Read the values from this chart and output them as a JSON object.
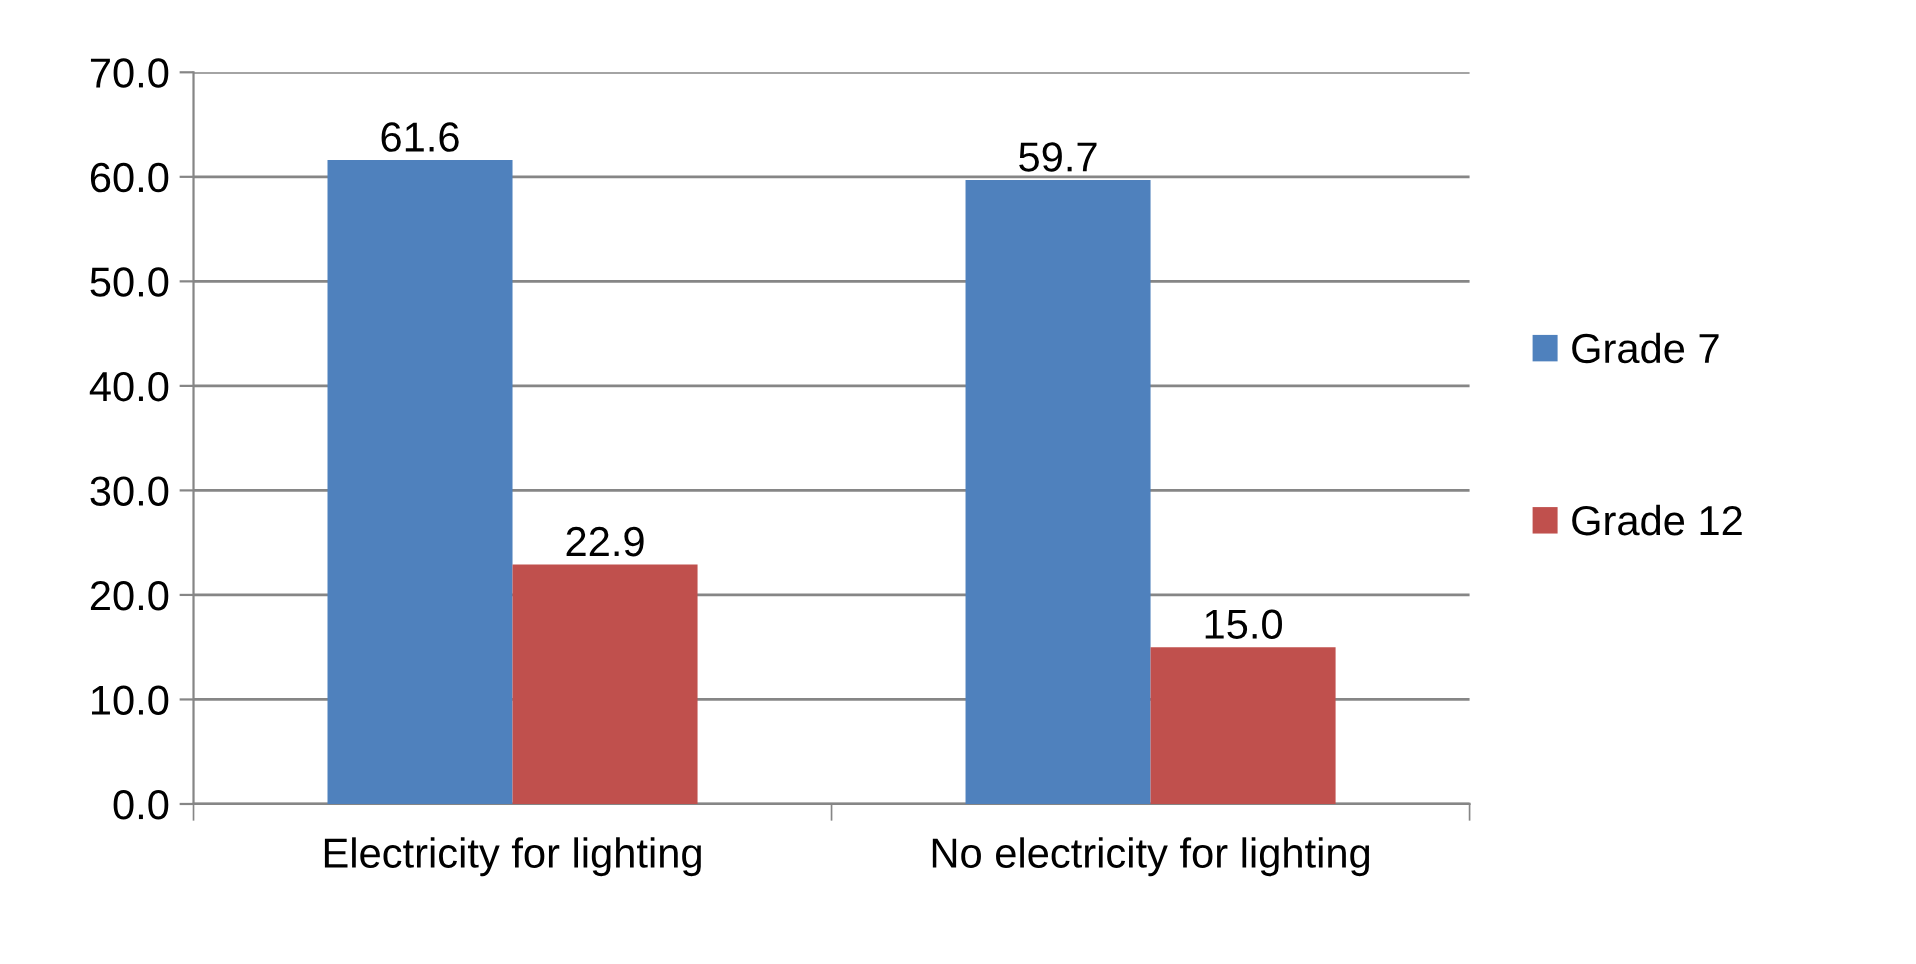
{
  "chart_data": {
    "type": "bar",
    "categories": [
      "Electricity for lighting",
      "No electricity for lighting"
    ],
    "series": [
      {
        "name": "Grade 7",
        "color": "#4f81bd",
        "values": [
          61.6,
          59.7
        ],
        "value_labels": [
          "61.6",
          "59.7"
        ]
      },
      {
        "name": "Grade 12",
        "color": "#c0504d",
        "values": [
          22.9,
          15.0
        ],
        "value_labels": [
          "22.9",
          "15.0"
        ]
      }
    ],
    "ylim": [
      0,
      70
    ],
    "yticks": [
      {
        "value": 0,
        "label": "0.0"
      },
      {
        "value": 10,
        "label": "10.0"
      },
      {
        "value": 20,
        "label": "20.0"
      },
      {
        "value": 30,
        "label": "30.0"
      },
      {
        "value": 40,
        "label": "40.0"
      },
      {
        "value": 50,
        "label": "50.0"
      },
      {
        "value": 60,
        "label": "60.0"
      },
      {
        "value": 70,
        "label": "70.0"
      }
    ],
    "grid": "y",
    "legend": "right"
  }
}
